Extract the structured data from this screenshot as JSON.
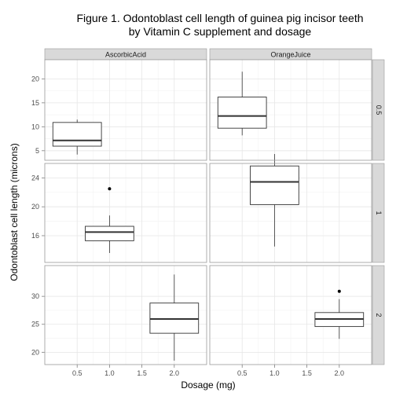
{
  "title_line1": "Figure 1. Odontoblast cell length of guinea pig incisor teeth",
  "title_line2": "by Vitamin C supplement and dosage",
  "chart_data": {
    "type": "boxplot",
    "title": "Figure 1. Odontoblast cell length of guinea pig incisor teeth by Vitamin C supplement and dosage",
    "xlabel": "Dosage (mg)",
    "ylabel": "Odontoblast cell length (microns)",
    "facet_columns": [
      "AscorbicAcid",
      "OrangeJuice"
    ],
    "facet_rows": [
      "0.5",
      "1",
      "2"
    ],
    "x_ticks": [
      0.5,
      1.0,
      1.5,
      2.0
    ],
    "x_tick_labels": [
      "0.5",
      "1.0",
      "1.5",
      "2.0"
    ],
    "xlim": [
      0.0,
      2.5
    ],
    "rows": [
      {
        "label": "0.5",
        "ylim": [
          3.0,
          24.0
        ],
        "y_ticks": [
          5,
          10,
          15,
          20
        ],
        "y_tick_labels": [
          "5",
          "10",
          "15",
          "20"
        ]
      },
      {
        "label": "1",
        "ylim": [
          12.3,
          26.0
        ],
        "y_ticks": [
          16,
          20,
          24
        ],
        "y_tick_labels": [
          "16",
          "20",
          "24"
        ]
      },
      {
        "label": "2",
        "ylim": [
          17.8,
          35.5
        ],
        "y_ticks": [
          20,
          25,
          30
        ],
        "y_tick_labels": [
          "20",
          "25",
          "30"
        ]
      }
    ],
    "boxes": [
      {
        "supplement": "AscorbicAcid",
        "dose_row": "0.5",
        "x": 0.5,
        "min": 4.2,
        "q1": 5.95,
        "median": 7.15,
        "q3": 10.9,
        "max": 11.5,
        "outliers": []
      },
      {
        "supplement": "OrangeJuice",
        "dose_row": "0.5",
        "x": 0.5,
        "min": 8.2,
        "q1": 9.7,
        "median": 12.25,
        "q3": 16.2,
        "max": 21.5,
        "outliers": []
      },
      {
        "supplement": "AscorbicAcid",
        "dose_row": "1",
        "x": 1.0,
        "min": 13.6,
        "q1": 15.3,
        "median": 16.5,
        "q3": 17.3,
        "max": 18.8,
        "outliers": [
          22.5
        ]
      },
      {
        "supplement": "OrangeJuice",
        "dose_row": "1",
        "x": 1.0,
        "min": 14.5,
        "q1": 20.3,
        "median": 23.45,
        "q3": 25.65,
        "max": 27.3,
        "outliers": []
      },
      {
        "supplement": "AscorbicAcid",
        "dose_row": "2",
        "x": 2.0,
        "min": 18.5,
        "q1": 23.4,
        "median": 25.95,
        "q3": 28.8,
        "max": 33.9,
        "outliers": []
      },
      {
        "supplement": "OrangeJuice",
        "dose_row": "2",
        "x": 2.0,
        "min": 22.4,
        "q1": 24.6,
        "median": 25.95,
        "q3": 27.1,
        "max": 29.5,
        "outliers": [
          30.9
        ]
      }
    ],
    "box_width": 0.75,
    "colors": {
      "strip_fill": "#d9d9d9",
      "panel_bg": "#ffffff",
      "grid_major": "#e6e6e6",
      "grid_minor": "#f2f2f2",
      "box": "#333333",
      "panel_border": "#999999"
    }
  }
}
